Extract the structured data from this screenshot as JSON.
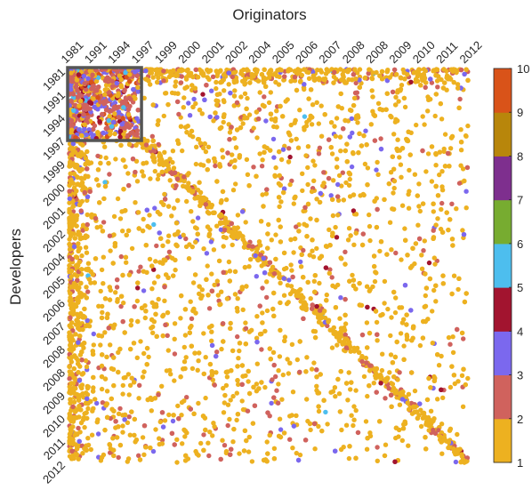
{
  "chart_data": {
    "type": "scatter",
    "title": "",
    "xlabel": "Originators",
    "ylabel": "Developers",
    "x_axis_position": "top",
    "x_tick_labels": [
      "1981",
      "1991",
      "1994",
      "1997",
      "1999",
      "2000",
      "2001",
      "2002",
      "2004",
      "2005",
      "2006",
      "2007",
      "2008",
      "2008",
      "2009",
      "2010",
      "2011",
      "2012"
    ],
    "y_tick_labels": [
      "1981",
      "1991",
      "1994",
      "1997",
      "1999",
      "2000",
      "2001",
      "2002",
      "2004",
      "2005",
      "2006",
      "2007",
      "2008",
      "2008",
      "2009",
      "2010",
      "2011",
      "2012"
    ],
    "xlim": [
      1,
      18
    ],
    "ylim": [
      1,
      18
    ],
    "grid": false,
    "highlight_box": {
      "x_range": [
        1,
        4
      ],
      "y_range": [
        1,
        4
      ]
    },
    "colorbar": {
      "min": 1,
      "max": 10,
      "ticks": [
        1,
        2,
        3,
        4,
        5,
        6,
        7,
        8,
        9,
        10
      ],
      "colors": {
        "1": "#EDB120",
        "2": "#D0625D",
        "3": "#7B68EE",
        "4": "#A2142F",
        "5": "#4DBEEE",
        "6": "#77AC30",
        "7": "#7E2F8E",
        "8": "#B8860B",
        "9": "#D95319",
        "10": "#0072BD"
      }
    }
  }
}
